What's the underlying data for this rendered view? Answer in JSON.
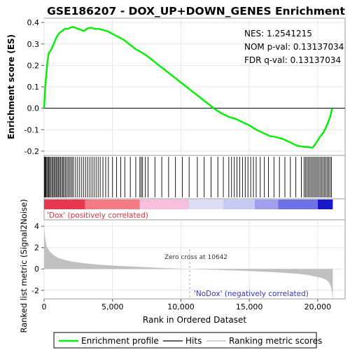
{
  "chart_data": {
    "type": "line",
    "title": "GSE186207 - DOX_UP+DOWN_GENES Enrichment",
    "stats": {
      "nes": "NES: 1.2541215",
      "nom_pval": "NOM p-val: 0.13137034",
      "fdr_qval": "FDR q-val: 0.13137034"
    },
    "es_panel": {
      "ylabel": "Enrichment score (ES)",
      "ylim": [
        -0.22,
        0.42
      ],
      "yticks": [
        0.4,
        0.3,
        0.2,
        0.1,
        0.0,
        -0.1,
        -0.2
      ],
      "ytick_labels": [
        "0.4",
        "0.3",
        "0.2",
        "0.1",
        "0.0",
        "-0.1",
        "-0.2"
      ],
      "zero_line": true,
      "series": [
        {
          "name": "Enrichment profile",
          "color": "#00ee00",
          "x": [
            0,
            60,
            150,
            250,
            350,
            500,
            700,
            900,
            1100,
            1300,
            1500,
            1700,
            1900,
            2100,
            2300,
            2500,
            2700,
            2900,
            3100,
            3300,
            3500,
            3700,
            4000,
            4300,
            4600,
            4900,
            5200,
            5500,
            5800,
            6100,
            6400,
            6700,
            7000,
            7500,
            8000,
            8500,
            9000,
            9500,
            10000,
            10500,
            11000,
            11500,
            12000,
            12500,
            13000,
            13500,
            14000,
            14500,
            15000,
            15500,
            16000,
            16500,
            17000,
            17500,
            18000,
            18500,
            19000,
            19300,
            19600,
            19800,
            20000,
            20200,
            20400,
            20600,
            20800,
            20950,
            21050
          ],
          "y": [
            0.0,
            0.08,
            0.15,
            0.22,
            0.26,
            0.27,
            0.3,
            0.33,
            0.35,
            0.36,
            0.37,
            0.37,
            0.375,
            0.38,
            0.375,
            0.37,
            0.365,
            0.36,
            0.37,
            0.375,
            0.375,
            0.37,
            0.37,
            0.365,
            0.36,
            0.35,
            0.34,
            0.33,
            0.32,
            0.305,
            0.29,
            0.275,
            0.265,
            0.245,
            0.22,
            0.195,
            0.17,
            0.145,
            0.12,
            0.095,
            0.07,
            0.045,
            0.02,
            -0.005,
            -0.025,
            -0.04,
            -0.05,
            -0.065,
            -0.08,
            -0.1,
            -0.115,
            -0.13,
            -0.135,
            -0.145,
            -0.16,
            -0.175,
            -0.18,
            -0.18,
            -0.185,
            -0.17,
            -0.15,
            -0.13,
            -0.115,
            -0.09,
            -0.06,
            -0.03,
            0.0
          ]
        }
      ]
    },
    "hits_panel": {
      "legend_label": "Hits",
      "color": "#000000",
      "hit_positions": [
        30,
        80,
        130,
        200,
        260,
        330,
        400,
        470,
        560,
        640,
        720,
        800,
        880,
        960,
        1040,
        1120,
        1200,
        1300,
        1380,
        1460,
        1560,
        1650,
        1750,
        1850,
        1950,
        2050,
        2150,
        2300,
        2450,
        2600,
        2750,
        2900,
        3050,
        3200,
        3350,
        3500,
        3650,
        3800,
        3950,
        4100,
        4300,
        4500,
        4700,
        5000,
        5300,
        5600,
        5900,
        6300,
        6700,
        7000,
        7100,
        7200,
        7400,
        7600,
        8100,
        8600,
        9100,
        9600,
        10100,
        10600,
        11200,
        11700,
        12200,
        12700,
        13100,
        13500,
        13700,
        13900,
        14100,
        14300,
        14500,
        14700,
        14900,
        15100,
        15300,
        15500,
        15800,
        16100,
        16400,
        16800,
        17200,
        17600,
        18000,
        18400,
        18800,
        19000,
        19100,
        19200,
        19300,
        19400,
        19500,
        19600,
        19700,
        19800,
        19900,
        20000,
        20100,
        20200,
        20300,
        20400,
        20500,
        20600,
        20700,
        20800,
        20900,
        21000
      ]
    },
    "colorbar": {
      "segments": [
        {
          "from": 0,
          "to": 3000,
          "color": "#e8384f"
        },
        {
          "from": 3000,
          "to": 7000,
          "color": "#f47a86"
        },
        {
          "from": 7000,
          "to": 10600,
          "color": "#f6c0dc"
        },
        {
          "from": 10600,
          "to": 13100,
          "color": "#dcdcf6"
        },
        {
          "from": 13100,
          "to": 15400,
          "color": "#c8c8f4"
        },
        {
          "from": 15400,
          "to": 17100,
          "color": "#9f9ff0"
        },
        {
          "from": 17100,
          "to": 20000,
          "color": "#6f6fe6"
        },
        {
          "from": 20000,
          "to": 21100,
          "color": "#1a18c8"
        }
      ],
      "positive_label": "'Dox' (positively correlated)",
      "negative_label": "'NoDox' (negatively correlated)",
      "positive_color": "#e0303c",
      "negative_color": "#3434cc"
    },
    "metric_panel": {
      "ylabel": "Ranked list metric (Signal2Noise)",
      "xlabel": "Rank in Ordered Dataset",
      "ylim": [
        -2.8,
        4.6
      ],
      "yticks": [
        4,
        2,
        0,
        -2
      ],
      "ytick_labels": [
        "4",
        "2",
        "0",
        "-2"
      ],
      "xlim": [
        0,
        22000
      ],
      "xticks": [
        0,
        5000,
        10000,
        15000,
        20000
      ],
      "xtick_labels": [
        "0",
        "5,000",
        "10,000",
        "15,000",
        "20,000"
      ],
      "zero_cross_rank": 10642,
      "zero_cross_label": "Zero cross at 10642",
      "fill_color": "#c0c0c0",
      "x": [
        0,
        50,
        100,
        200,
        400,
        700,
        1000,
        1500,
        2000,
        3000,
        4000,
        5000,
        6000,
        7000,
        8000,
        9000,
        10000,
        10642,
        11500,
        12500,
        13500,
        14500,
        15500,
        16500,
        17500,
        18500,
        19200,
        19800,
        20300,
        20600,
        20800,
        20950,
        21050,
        21100
      ],
      "y": [
        4.2,
        3.2,
        2.7,
        2.1,
        1.65,
        1.3,
        1.05,
        0.85,
        0.7,
        0.52,
        0.4,
        0.32,
        0.25,
        0.19,
        0.13,
        0.08,
        0.03,
        0.0,
        -0.04,
        -0.08,
        -0.12,
        -0.17,
        -0.22,
        -0.28,
        -0.35,
        -0.45,
        -0.55,
        -0.7,
        -0.85,
        -1.0,
        -1.2,
        -1.6,
        -2.2,
        -3.2
      ]
    },
    "legend": {
      "items": [
        {
          "label": "Enrichment profile",
          "color": "#00ee00",
          "style": "line"
        },
        {
          "label": "Hits",
          "color": "#000000",
          "style": "line"
        },
        {
          "label": "Ranking metric scores",
          "color": "#c0c0c0",
          "style": "line"
        }
      ]
    }
  }
}
